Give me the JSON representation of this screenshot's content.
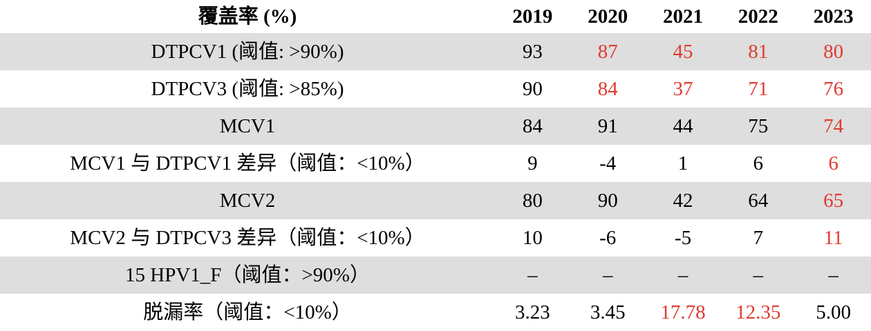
{
  "header": {
    "label": "覆盖率 (%)",
    "years": [
      "2019",
      "2020",
      "2021",
      "2022",
      "2023"
    ]
  },
  "colors": {
    "highlight": "#e03a30",
    "row_shade": "#dedede"
  },
  "rows": [
    {
      "label": "DTPCV1 (阈值: >90%)",
      "values": [
        "93",
        "87",
        "45",
        "81",
        "80"
      ],
      "red": [
        false,
        true,
        true,
        true,
        true
      ],
      "shaded": true
    },
    {
      "label": "DTPCV3 (阈值: >85%)",
      "values": [
        "90",
        "84",
        "37",
        "71",
        "76"
      ],
      "red": [
        false,
        true,
        true,
        true,
        true
      ],
      "shaded": false
    },
    {
      "label": "MCV1",
      "values": [
        "84",
        "91",
        "44",
        "75",
        "74"
      ],
      "red": [
        false,
        false,
        false,
        false,
        true
      ],
      "shaded": true
    },
    {
      "label": "MCV1 与 DTPCV1 差异（阈值：<10%）",
      "values": [
        "9",
        "-4",
        "1",
        "6",
        "6"
      ],
      "red": [
        false,
        false,
        false,
        false,
        true
      ],
      "shaded": false
    },
    {
      "label": "MCV2",
      "values": [
        "80",
        "90",
        "42",
        "64",
        "65"
      ],
      "red": [
        false,
        false,
        false,
        false,
        true
      ],
      "shaded": true
    },
    {
      "label": "MCV2 与 DTPCV3 差异（阈值：<10%）",
      "values": [
        "10",
        "-6",
        "-5",
        "7",
        "11"
      ],
      "red": [
        false,
        false,
        false,
        false,
        true
      ],
      "shaded": false
    },
    {
      "label": "15 HPV1_F（阈值：>90%）",
      "values": [
        "–",
        "–",
        "–",
        "–",
        "–"
      ],
      "red": [
        false,
        false,
        false,
        false,
        false
      ],
      "shaded": true
    },
    {
      "label": "脱漏率（阈值：<10%）",
      "values": [
        "3.23",
        "3.45",
        "17.78",
        "12.35",
        "5.00"
      ],
      "red": [
        false,
        false,
        true,
        true,
        false
      ],
      "shaded": false
    }
  ]
}
